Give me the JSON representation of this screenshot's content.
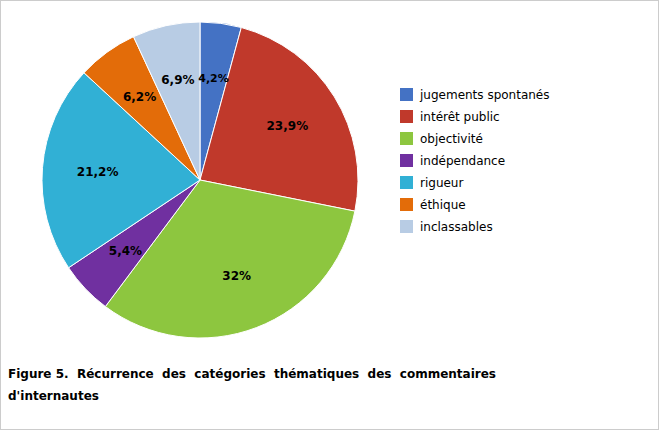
{
  "chart_data": {
    "type": "pie",
    "title": [
      "Figure 5.  Récurrence  des  catégories  thématiques  des  commentaires",
      "d'internautes"
    ],
    "categories": [
      "jugements spontanés",
      "intérêt public",
      "objectivité",
      "indépendance",
      "rigueur",
      "éthique",
      "inclassables"
    ],
    "values": [
      4.2,
      23.9,
      32,
      5.4,
      21.2,
      6.2,
      6.9
    ],
    "value_labels": [
      "4,2%",
      "23,9%",
      "32%",
      "5,4%",
      "21,2%",
      "6,2%",
      "6,9%"
    ],
    "colors": [
      "#4472C4",
      "#C0392B",
      "#8DC63F",
      "#7030A0",
      "#31B0D5",
      "#E36C09",
      "#B8CCE4"
    ],
    "data_labels": true,
    "legend": "right"
  }
}
